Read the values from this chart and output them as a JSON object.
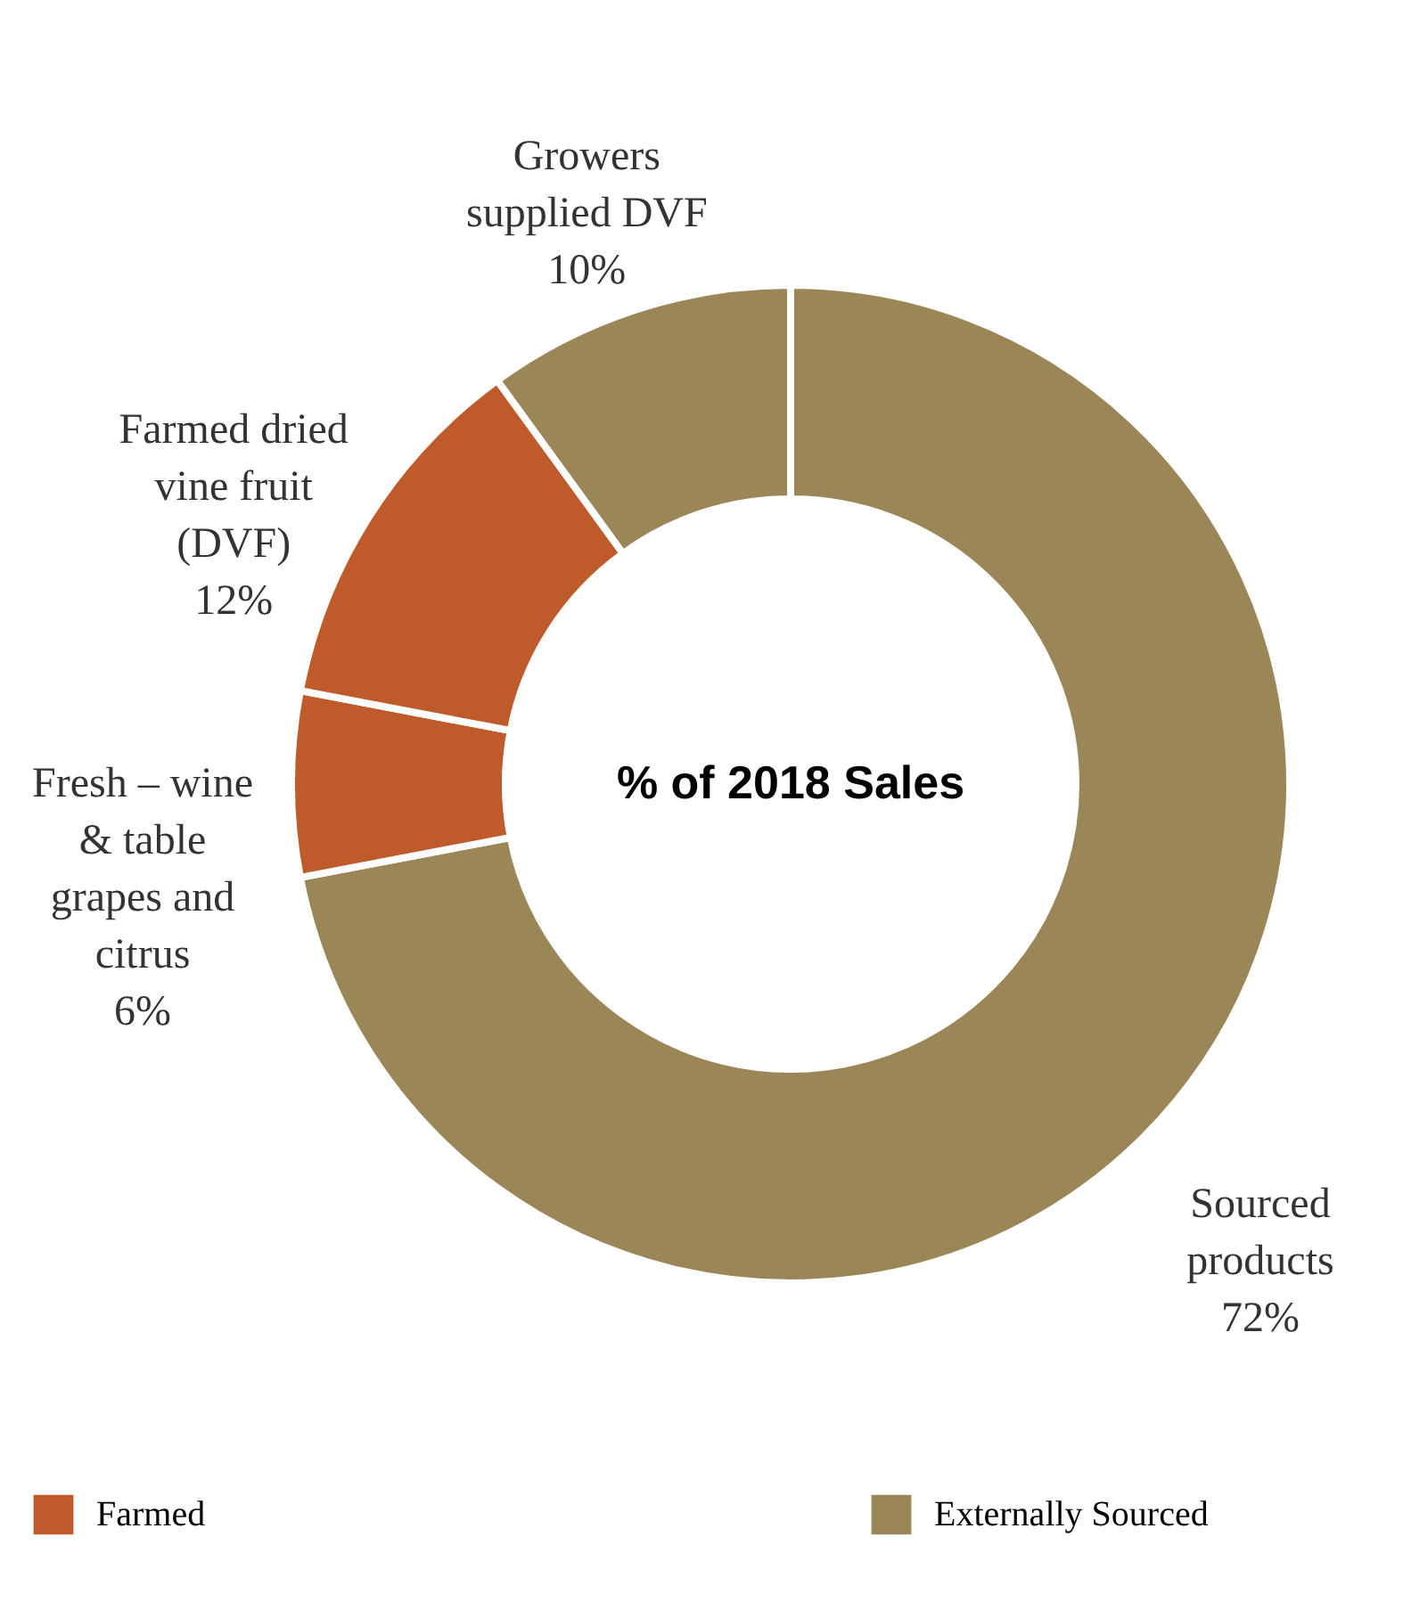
{
  "chart_data": {
    "type": "donut",
    "title": "% of 2018 Sales",
    "categories": [
      "Sourced products",
      "Fresh – wine & table grapes and citrus",
      "Farmed dried vine fruit (DVF)",
      "Growers supplied DVF"
    ],
    "values": [
      72,
      6,
      12,
      10
    ],
    "colors": [
      "#9b8657",
      "#bf5a2b",
      "#bf5a2b",
      "#9b8657"
    ],
    "value_labels": [
      "72%",
      "6%",
      "12%",
      "10%"
    ],
    "annotations": [
      "Farmed",
      "Externally Sourced"
    ]
  }
}
